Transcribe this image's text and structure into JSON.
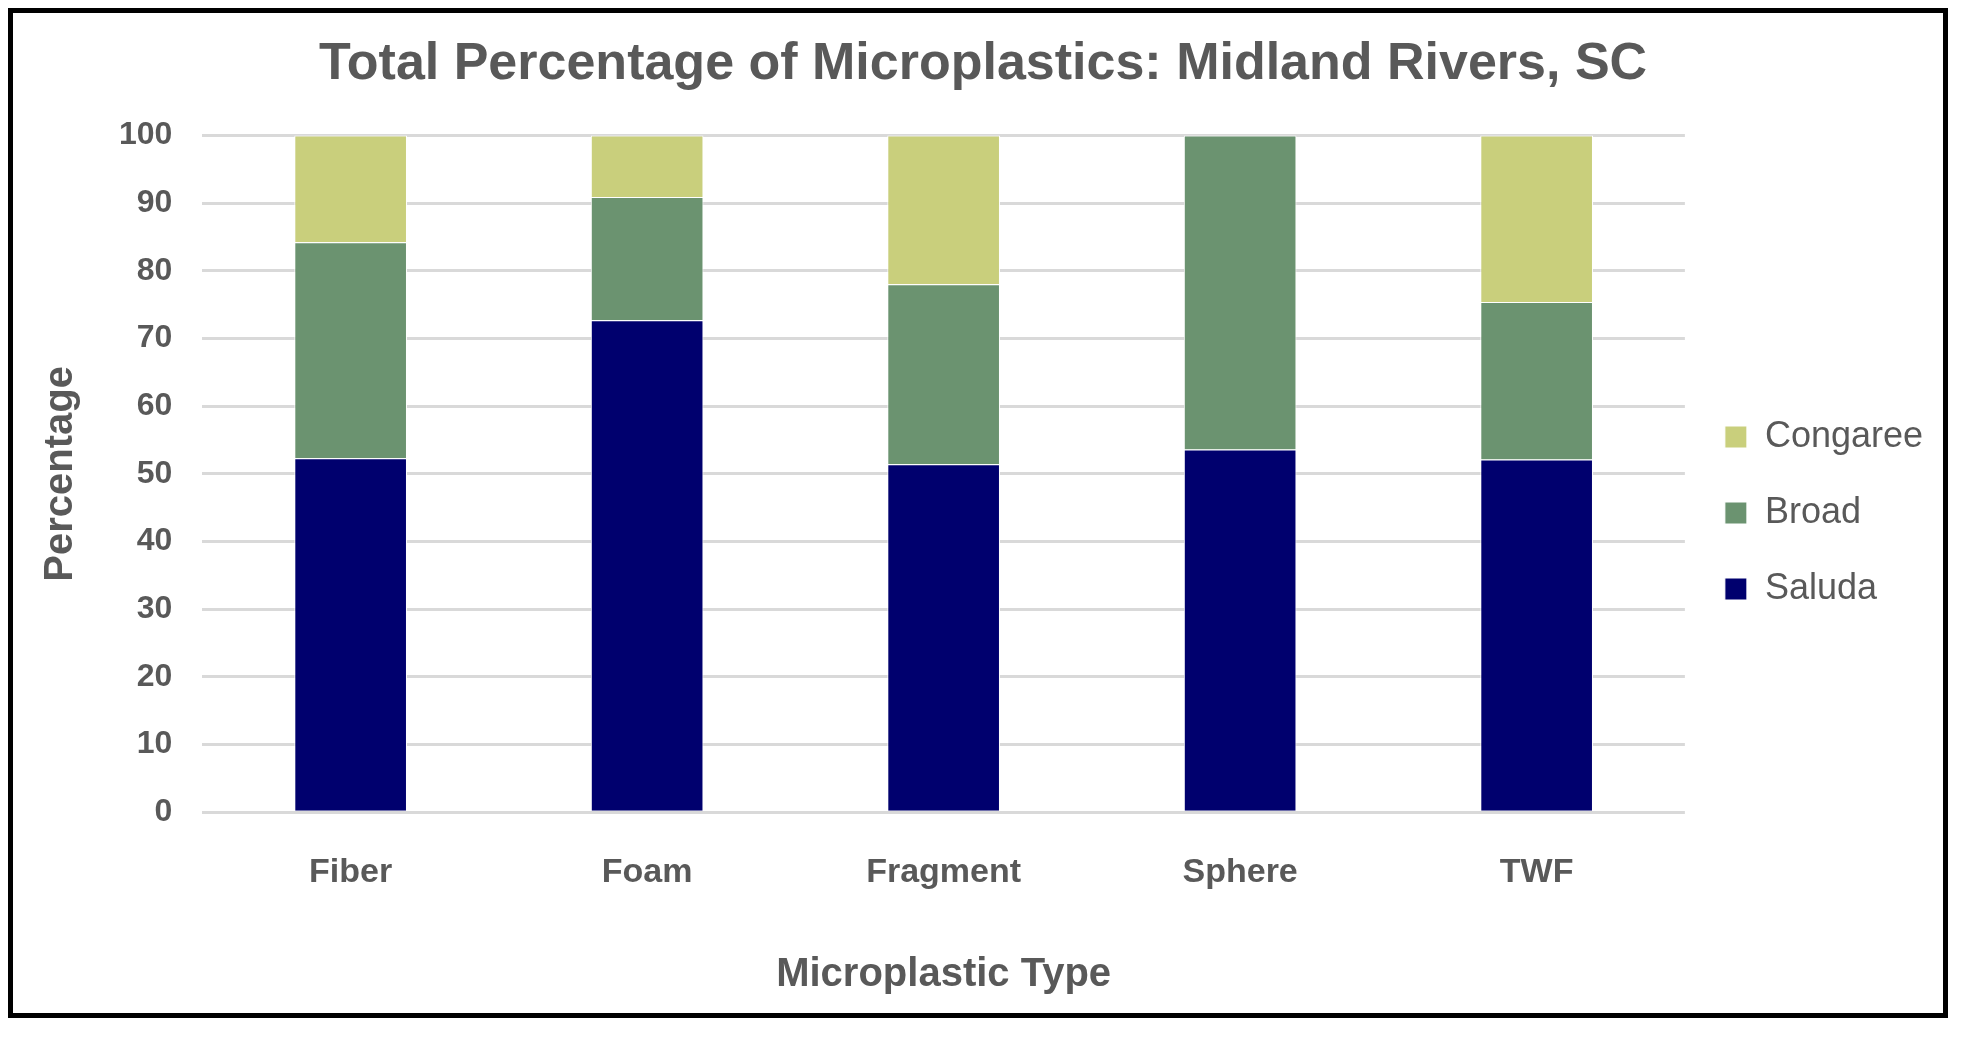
{
  "chart_data": {
    "type": "bar",
    "title": "Total Percentage of Microplastics: Midland Rivers, SC",
    "xlabel": "Microplastic Type",
    "ylabel": "Percentage",
    "categories": [
      "Fiber",
      "Foam",
      "Fragment",
      "Sphere",
      "TWF"
    ],
    "stacked": true,
    "series": [
      {
        "name": "Saluda",
        "color": "#00006e",
        "values": [
          52.3,
          72.7,
          51.4,
          53.6,
          52.1
        ]
      },
      {
        "name": "Broad",
        "color": "#6b9370",
        "values": [
          31.9,
          18.2,
          26.6,
          46.4,
          23.3
        ]
      },
      {
        "name": "Congaree",
        "color": "#c9cf7c",
        "values": [
          15.8,
          9.1,
          22.0,
          0,
          24.6
        ]
      }
    ],
    "ylim": [
      0,
      100
    ],
    "yticks": [
      0,
      10,
      20,
      30,
      40,
      50,
      60,
      70,
      80,
      90,
      100
    ],
    "grid": "y",
    "legend": "right"
  }
}
